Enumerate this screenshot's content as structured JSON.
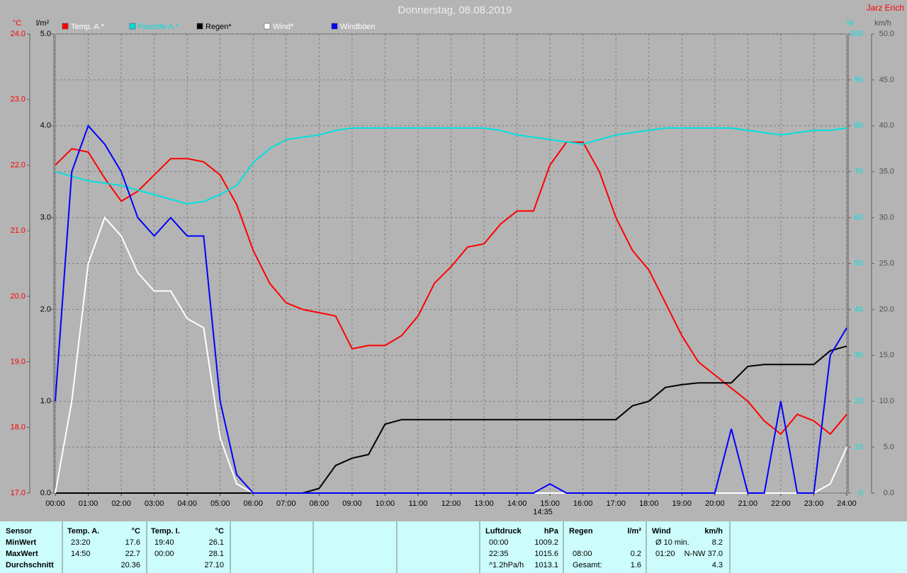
{
  "chart_data": {
    "type": "line",
    "title": "Donnerstag, 08.08.2019",
    "author": "Jarz Erich",
    "annotation": "14:35",
    "x": [
      0,
      0.5,
      1,
      1.5,
      2,
      2.5,
      3,
      3.5,
      4,
      4.5,
      5,
      5.5,
      6,
      6.5,
      7,
      7.5,
      8,
      8.5,
      9,
      9.5,
      10,
      10.5,
      11,
      11.5,
      12,
      12.5,
      13,
      13.5,
      14,
      14.5,
      15,
      15.5,
      16,
      16.5,
      17,
      17.5,
      18,
      18.5,
      19,
      19.5,
      20,
      20.5,
      21,
      21.5,
      22,
      22.5,
      23,
      23.5,
      24
    ],
    "xlim": [
      0,
      24
    ],
    "xticks": [
      {
        "value": 0,
        "label": "00:00"
      },
      {
        "value": 1,
        "label": "01:00"
      },
      {
        "value": 2,
        "label": "02:00"
      },
      {
        "value": 3,
        "label": "03:00"
      },
      {
        "value": 4,
        "label": "04:00"
      },
      {
        "value": 5,
        "label": "05:00"
      },
      {
        "value": 6,
        "label": "06:00"
      },
      {
        "value": 7,
        "label": "07:00"
      },
      {
        "value": 8,
        "label": "08:00"
      },
      {
        "value": 9,
        "label": "09:00"
      },
      {
        "value": 10,
        "label": "10:00"
      },
      {
        "value": 11,
        "label": "11:00"
      },
      {
        "value": 12,
        "label": "12:00"
      },
      {
        "value": 13,
        "label": "13:00"
      },
      {
        "value": 14,
        "label": "14:00"
      },
      {
        "value": 15,
        "label": "15:00"
      },
      {
        "value": 16,
        "label": "16:00"
      },
      {
        "value": 17,
        "label": "17:00"
      },
      {
        "value": 18,
        "label": "18:00"
      },
      {
        "value": 19,
        "label": "19:00"
      },
      {
        "value": 20,
        "label": "20:00"
      },
      {
        "value": 21,
        "label": "21:00"
      },
      {
        "value": 22,
        "label": "22:00"
      },
      {
        "value": 23,
        "label": "23:00"
      },
      {
        "value": 24,
        "label": "24:00"
      }
    ],
    "grid": true,
    "grid_axis": 2,
    "axes": [
      {
        "unit": "°C",
        "color": "#ff0000",
        "lim": [
          17,
          24
        ],
        "ticks": [
          {
            "value": 17,
            "label": "17.0"
          },
          {
            "value": 18,
            "label": "18.0"
          },
          {
            "value": 19,
            "label": "19.0"
          },
          {
            "value": 20,
            "label": "20.0"
          },
          {
            "value": 21,
            "label": "21.0"
          },
          {
            "value": 22,
            "label": "22.0"
          },
          {
            "value": 23,
            "label": "23.0"
          },
          {
            "value": 24,
            "label": "24.0"
          }
        ]
      },
      {
        "unit": "l/m²",
        "color": "#000000",
        "lim": [
          0,
          5
        ],
        "ticks": [
          {
            "value": 0,
            "label": "0.0"
          },
          {
            "value": 1,
            "label": "1.0"
          },
          {
            "value": 2,
            "label": "2.0"
          },
          {
            "value": 3,
            "label": "3.0"
          },
          {
            "value": 4,
            "label": "4.0"
          },
          {
            "value": 5,
            "label": "5.0"
          }
        ]
      },
      {
        "unit": "%",
        "color": "#00e0e0",
        "lim": [
          0,
          100
        ],
        "ticks": [
          0,
          10,
          20,
          30,
          40,
          50,
          60,
          70,
          80,
          90,
          100
        ]
      },
      {
        "unit": "km/h",
        "color": "#505050",
        "lim": [
          0,
          50
        ],
        "ticks": [
          {
            "value": 0,
            "label": "0.0"
          },
          {
            "value": 5,
            "label": "5.0"
          },
          {
            "value": 10,
            "label": "10.0"
          },
          {
            "value": 15,
            "label": "15.0"
          },
          {
            "value": 20,
            "label": "20.0"
          },
          {
            "value": 25,
            "label": "25.0"
          },
          {
            "value": 30,
            "label": "30.0"
          },
          {
            "value": 35,
            "label": "35.0"
          },
          {
            "value": 40,
            "label": "40.0"
          },
          {
            "value": 45,
            "label": "45.0"
          },
          {
            "value": 50,
            "label": "50.0"
          }
        ]
      }
    ],
    "series": [
      {
        "name": "Temp. A.*",
        "color": "#ff0000",
        "label_color": "#ffffff",
        "axis": 0,
        "values": [
          22.0,
          22.25,
          22.2,
          21.8,
          21.45,
          21.6,
          21.85,
          22.1,
          22.1,
          22.05,
          21.85,
          21.4,
          20.7,
          20.2,
          19.9,
          19.8,
          19.75,
          19.7,
          19.2,
          19.25,
          19.25,
          19.4,
          19.7,
          20.2,
          20.45,
          20.75,
          20.8,
          21.1,
          21.3,
          21.3,
          22.0,
          22.35,
          22.35,
          21.9,
          21.2,
          20.7,
          20.4,
          19.9,
          19.4,
          19.0,
          18.8,
          18.6,
          18.4,
          18.1,
          17.9,
          18.2,
          18.1,
          17.9,
          18.2
        ]
      },
      {
        "name": "Feuchte A.*",
        "color": "#00e0e0",
        "label_color": "#00e0e0",
        "axis": 2,
        "values": [
          70,
          69,
          68,
          67.5,
          67,
          66,
          65,
          64,
          63,
          63.5,
          65,
          67,
          72,
          75,
          77,
          77.5,
          78,
          79,
          79.5,
          79.5,
          79.5,
          79.5,
          79.5,
          79.5,
          79.5,
          79.5,
          79.5,
          79,
          78,
          77.5,
          77,
          76.5,
          76,
          77,
          78,
          78.5,
          79,
          79.5,
          79.5,
          79.5,
          79.5,
          79.5,
          79,
          78.5,
          78,
          78.5,
          79,
          79,
          79.5
        ]
      },
      {
        "name": "Regen*",
        "color": "#000000",
        "label_color": "#000000",
        "axis": 1,
        "values": [
          0,
          0,
          0,
          0,
          0,
          0,
          0,
          0,
          0,
          0,
          0,
          0,
          0,
          0,
          0,
          0,
          0.05,
          0.3,
          0.38,
          0.42,
          0.75,
          0.8,
          0.8,
          0.8,
          0.8,
          0.8,
          0.8,
          0.8,
          0.8,
          0.8,
          0.8,
          0.8,
          0.8,
          0.8,
          0.8,
          0.95,
          1.0,
          1.15,
          1.18,
          1.2,
          1.2,
          1.2,
          1.38,
          1.4,
          1.4,
          1.4,
          1.4,
          1.55,
          1.6
        ]
      },
      {
        "name": "Wind*",
        "color": "#ffffff",
        "label_color": "#ffffff",
        "axis": 3,
        "values": [
          0,
          10,
          25,
          30,
          28,
          24,
          22,
          22,
          19,
          18,
          6,
          1,
          0,
          0,
          0,
          0,
          0,
          0,
          0,
          0,
          0,
          0,
          0,
          0,
          0,
          0,
          0,
          0,
          0,
          0,
          0,
          0,
          0,
          0,
          0,
          0,
          0,
          0,
          0,
          0,
          0,
          0,
          0,
          0,
          0,
          0,
          0,
          1,
          5
        ]
      },
      {
        "name": "Windböen",
        "color": "#0000ff",
        "label_color": "#ffffff",
        "axis": 3,
        "values": [
          10,
          35,
          40,
          38,
          35,
          30,
          28,
          30,
          28,
          28,
          10,
          2,
          0,
          0,
          0,
          0,
          0,
          0,
          0,
          0,
          0,
          0,
          0,
          0,
          0,
          0,
          0,
          0,
          0,
          0,
          1,
          0,
          0,
          0,
          0,
          0,
          0,
          0,
          0,
          0,
          0,
          7,
          0,
          0,
          10,
          0,
          0,
          15,
          18
        ]
      }
    ]
  },
  "table": {
    "row_labels": [
      "Sensor",
      "MinWert",
      "MaxWert",
      "Durchschnitt"
    ],
    "columns": [
      {
        "header": "Temp. A.",
        "unit": "°C",
        "rows": [
          {
            "time": "23:20",
            "value": "17.6"
          },
          {
            "time": "14:50",
            "value": "22.7"
          },
          {
            "value": "20.36"
          }
        ]
      },
      {
        "header": "Temp. I.",
        "unit": "°C",
        "rows": [
          {
            "time": "19:40",
            "value": "26.1"
          },
          {
            "time": "00:00",
            "value": "28.1"
          },
          {
            "value": "27.10"
          }
        ]
      },
      {
        "header": "Luftdruck",
        "unit": "hPa",
        "rows": [
          {
            "time": "00:00",
            "value": "1009.2"
          },
          {
            "time": "22:35",
            "value": "1015.6"
          },
          {
            "time": "^1.2hPa/h",
            "value": "1013.1"
          }
        ]
      },
      {
        "header": "Regen",
        "unit": "l/m²",
        "rows": [
          null,
          {
            "time": "08:00",
            "value": "0.2"
          },
          {
            "time": "Gesamt:",
            "value": "1.6"
          }
        ]
      },
      {
        "header": "Wind",
        "unit": "km/h",
        "rows": [
          {
            "time": "Ø 10 min.",
            "value": "8.2"
          },
          {
            "time": "01:20",
            "value": "N-NW 37.0"
          },
          {
            "value": "4.3"
          }
        ]
      }
    ]
  }
}
